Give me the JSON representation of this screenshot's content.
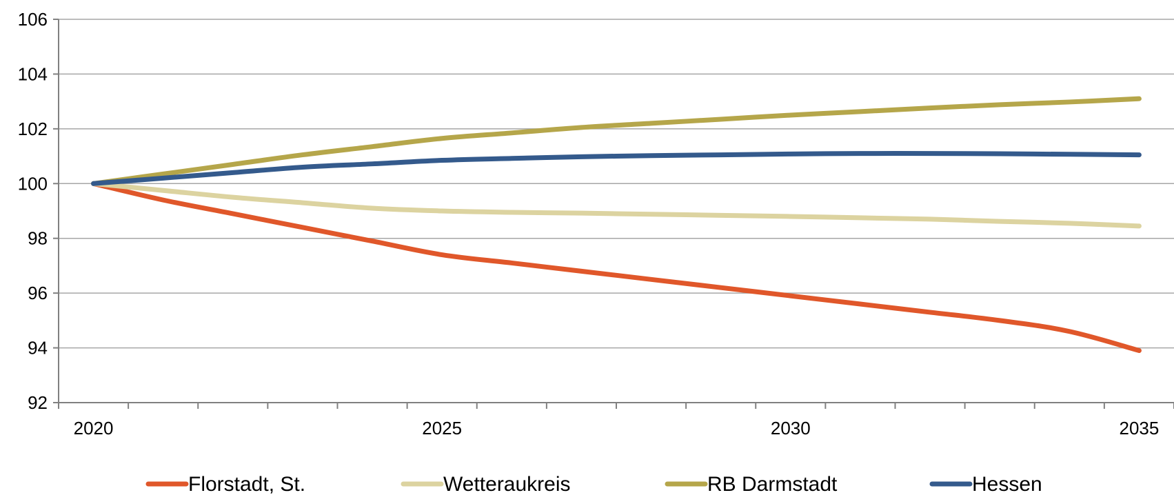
{
  "chart_data": {
    "type": "line",
    "title": "",
    "xlabel": "",
    "ylabel": "",
    "x": [
      2020,
      2021,
      2022,
      2023,
      2024,
      2025,
      2026,
      2027,
      2028,
      2029,
      2030,
      2031,
      2032,
      2033,
      2034,
      2035
    ],
    "x_tick_labels": [
      "2020",
      "2025",
      "2030",
      "2035"
    ],
    "y_tick_labels": [
      "92",
      "94",
      "96",
      "98",
      "100",
      "102",
      "104",
      "106"
    ],
    "ylim": [
      92,
      106
    ],
    "xlim": [
      2019.5,
      2035.5
    ],
    "grid": true,
    "legend_position": "bottom",
    "series": [
      {
        "name": "Florstadt, St.",
        "color": "#e0572a",
        "values": [
          100,
          99.4,
          98.9,
          98.4,
          97.9,
          97.4,
          97.1,
          96.8,
          96.5,
          96.2,
          95.9,
          95.6,
          95.3,
          95.0,
          94.6,
          93.9
        ]
      },
      {
        "name": "Wetteraukreis",
        "color": "#dcd3a0",
        "values": [
          100,
          99.75,
          99.5,
          99.3,
          99.1,
          99.0,
          98.95,
          98.92,
          98.88,
          98.84,
          98.8,
          98.75,
          98.7,
          98.62,
          98.55,
          98.45
        ]
      },
      {
        "name": "RB Darmstadt",
        "color": "#b5a64a",
        "values": [
          100,
          100.35,
          100.7,
          101.05,
          101.35,
          101.65,
          101.85,
          102.05,
          102.2,
          102.35,
          102.5,
          102.63,
          102.76,
          102.88,
          102.98,
          103.1
        ]
      },
      {
        "name": "Hessen",
        "color": "#345a8c",
        "values": [
          100,
          100.2,
          100.4,
          100.6,
          100.72,
          100.85,
          100.92,
          100.98,
          101.02,
          101.05,
          101.08,
          101.1,
          101.1,
          101.09,
          101.07,
          101.05
        ]
      }
    ]
  }
}
